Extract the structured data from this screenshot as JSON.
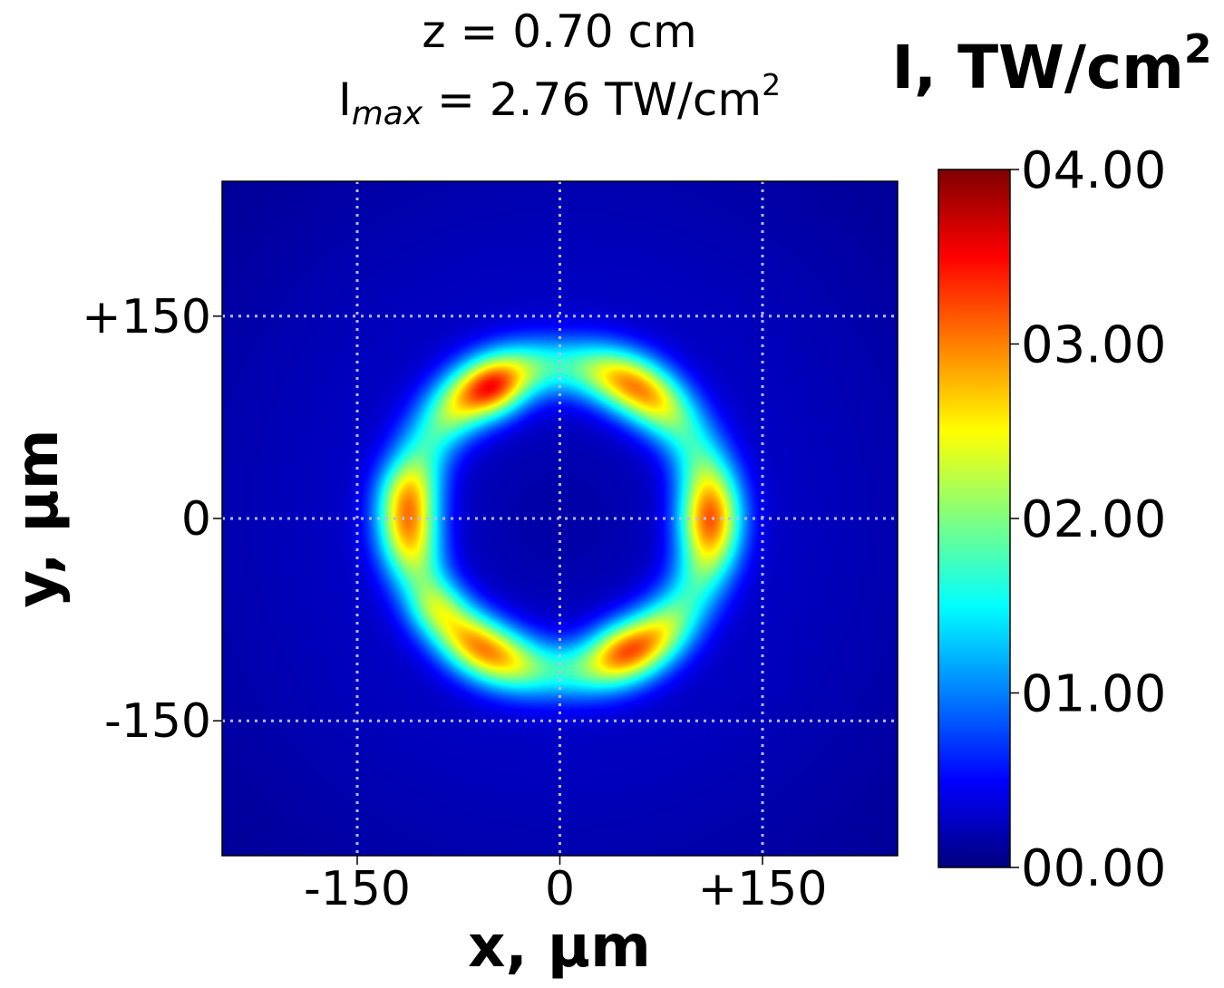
{
  "chart_data": {
    "type": "heatmap",
    "title_line1": "z = 0.70 cm",
    "title_line2": {
      "prefix": "I",
      "subscript": "max",
      "value": " = 2.76 TW/cm",
      "superscript": "2"
    },
    "xlabel": "x, µm",
    "ylabel": "y, µm",
    "xlim": [
      -250,
      250
    ],
    "ylim": [
      -250,
      250
    ],
    "x_ticks": [
      {
        "value": -150,
        "label": "-150"
      },
      {
        "value": 0,
        "label": "0"
      },
      {
        "value": 150,
        "label": "+150"
      }
    ],
    "y_ticks": [
      {
        "value": -150,
        "label": "-150"
      },
      {
        "value": 0,
        "label": "0"
      },
      {
        "value": 150,
        "label": "+150"
      }
    ],
    "grid": true,
    "colorbar": {
      "label": "I, TW/cm",
      "label_superscript": "2",
      "colormap": "jet",
      "range": [
        0,
        4
      ],
      "ticks": [
        {
          "value": 0,
          "label": "00.00"
        },
        {
          "value": 1,
          "label": "01.00"
        },
        {
          "value": 2,
          "label": "02.00"
        },
        {
          "value": 3,
          "label": "03.00"
        },
        {
          "value": 4,
          "label": "04.00"
        }
      ]
    },
    "ring": {
      "center": [
        0,
        0
      ],
      "radius": 112,
      "width_sigma": 16,
      "base_peak": 2.1,
      "modulation": {
        "count": 6,
        "amplitude": 0.3,
        "phase_deg": 0
      },
      "hot_spots": [
        {
          "x": -47,
          "y": 93,
          "value": 2.76
        },
        {
          "x": -92,
          "y": -64,
          "value": 2.7
        },
        {
          "x": 43,
          "y": -93,
          "value": 2.45
        },
        {
          "x": 100,
          "y": 0,
          "value": 2.35
        },
        {
          "x": -118,
          "y": 22,
          "value": 2.3
        }
      ],
      "background": {
        "value": 0.35,
        "sigma": 220,
        "center_dip": 0.2
      }
    }
  }
}
